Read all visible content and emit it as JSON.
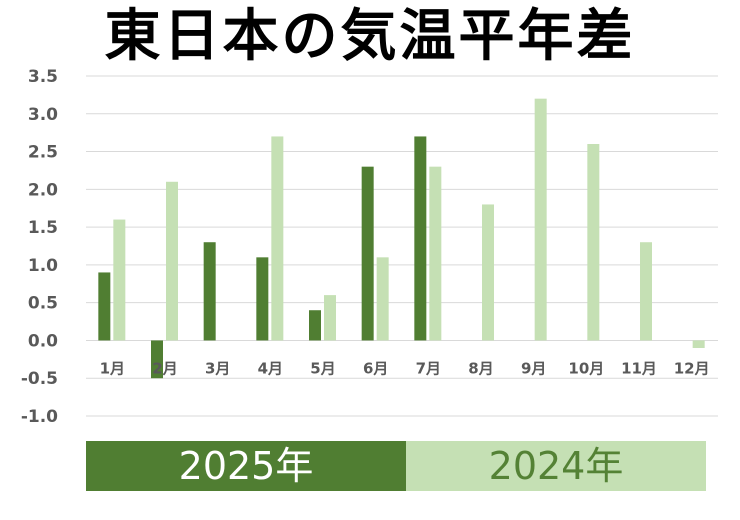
{
  "title": "東日本の気温平年差",
  "colors": {
    "series_2025": "#507E32",
    "series_2024": "#C5E0B4",
    "legend_text_2025": "#ffffff",
    "legend_text_2024": "#548235",
    "grid": "#d9d9d9",
    "tick": "#595959"
  },
  "legend": {
    "label_2025": "2025年",
    "label_2024": "2024年"
  },
  "chart_data": {
    "type": "bar",
    "title": "東日本の気温平年差",
    "xlabel": "",
    "ylabel": "",
    "categories": [
      "1月",
      "2月",
      "3月",
      "4月",
      "5月",
      "6月",
      "7月",
      "8月",
      "9月",
      "10月",
      "11月",
      "12月"
    ],
    "ylim": [
      -1.0,
      3.5
    ],
    "yticks": [
      "3.5",
      "3.0",
      "2.5",
      "2.0",
      "1.5",
      "1.0",
      "0.5",
      "0.0",
      "-0.5",
      "-1.0"
    ],
    "grid": true,
    "legend_position": "bottom",
    "series": [
      {
        "name": "2025年",
        "values": [
          0.9,
          -0.5,
          1.3,
          1.1,
          0.4,
          2.3,
          2.7,
          null,
          null,
          null,
          null,
          null
        ]
      },
      {
        "name": "2024年",
        "values": [
          1.6,
          2.1,
          null,
          2.7,
          0.6,
          1.1,
          2.3,
          1.8,
          3.2,
          2.6,
          1.3,
          -0.1
        ]
      }
    ]
  }
}
